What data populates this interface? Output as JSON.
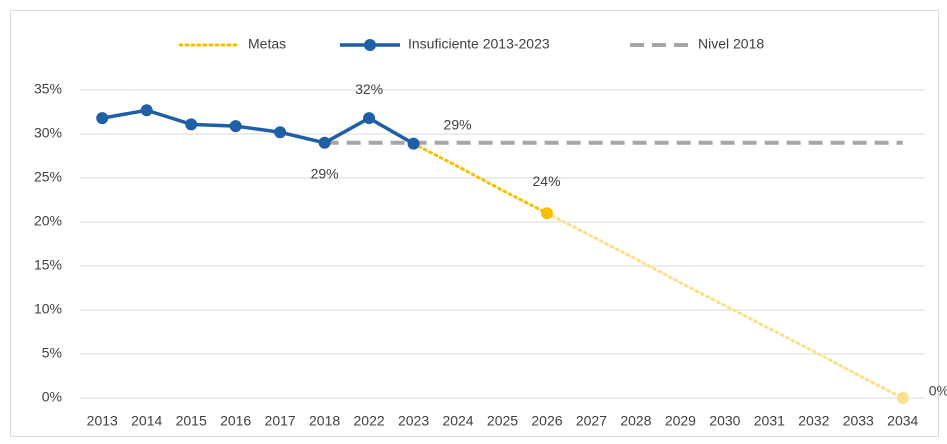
{
  "chart_data": {
    "type": "line",
    "categories": [
      "2013",
      "2014",
      "2015",
      "2016",
      "2017",
      "2018",
      "2022",
      "2023",
      "2024",
      "2025",
      "2026",
      "2027",
      "2028",
      "2029",
      "2030",
      "2031",
      "2032",
      "2033",
      "2034"
    ],
    "series": [
      {
        "name": "Metas",
        "color": "#f5c000",
        "faded_color": "#fbe08a",
        "faded_from": "2026",
        "style": "dotted",
        "markers_at": [
          "2026",
          "2034"
        ],
        "values": [
          null,
          null,
          null,
          null,
          null,
          null,
          null,
          28.9,
          26.3,
          23.6,
          21.0,
          18.4,
          15.8,
          13.1,
          10.5,
          7.9,
          5.3,
          2.6,
          0
        ],
        "value_labels": [
          null,
          null,
          null,
          null,
          null,
          null,
          null,
          null,
          null,
          "24%",
          null,
          null,
          null,
          null,
          null,
          null,
          null,
          null,
          "0%"
        ]
      },
      {
        "name": "Insuficiente 2013-2023",
        "color": "#1f5fa6",
        "style": "solid",
        "markers": true,
        "values": [
          31.8,
          32.7,
          31.1,
          30.9,
          30.2,
          29.0,
          31.8,
          28.9,
          null,
          null,
          null,
          null,
          null,
          null,
          null,
          null,
          null,
          null,
          null
        ],
        "value_labels": [
          null,
          null,
          null,
          null,
          null,
          "29%",
          "32%",
          "29%",
          null,
          null,
          null,
          null,
          null,
          null,
          null,
          null,
          null,
          null,
          null
        ]
      },
      {
        "name": "Nivel 2018",
        "color": "#a6a6a6",
        "style": "dashed",
        "values": [
          null,
          null,
          null,
          null,
          null,
          29,
          29,
          29,
          29,
          29,
          29,
          29,
          29,
          29,
          29,
          29,
          29,
          29,
          29
        ]
      }
    ],
    "ylim": [
      0,
      35
    ],
    "yticks": [
      {
        "value": 0,
        "label": "0%"
      },
      {
        "value": 5,
        "label": "5%"
      },
      {
        "value": 10,
        "label": "10%"
      },
      {
        "value": 15,
        "label": "15%"
      },
      {
        "value": 20,
        "label": "20%"
      },
      {
        "value": 25,
        "label": "25%"
      },
      {
        "value": 30,
        "label": "30%"
      },
      {
        "value": 35,
        "label": "35%"
      }
    ],
    "grid": true,
    "legend": "top"
  }
}
